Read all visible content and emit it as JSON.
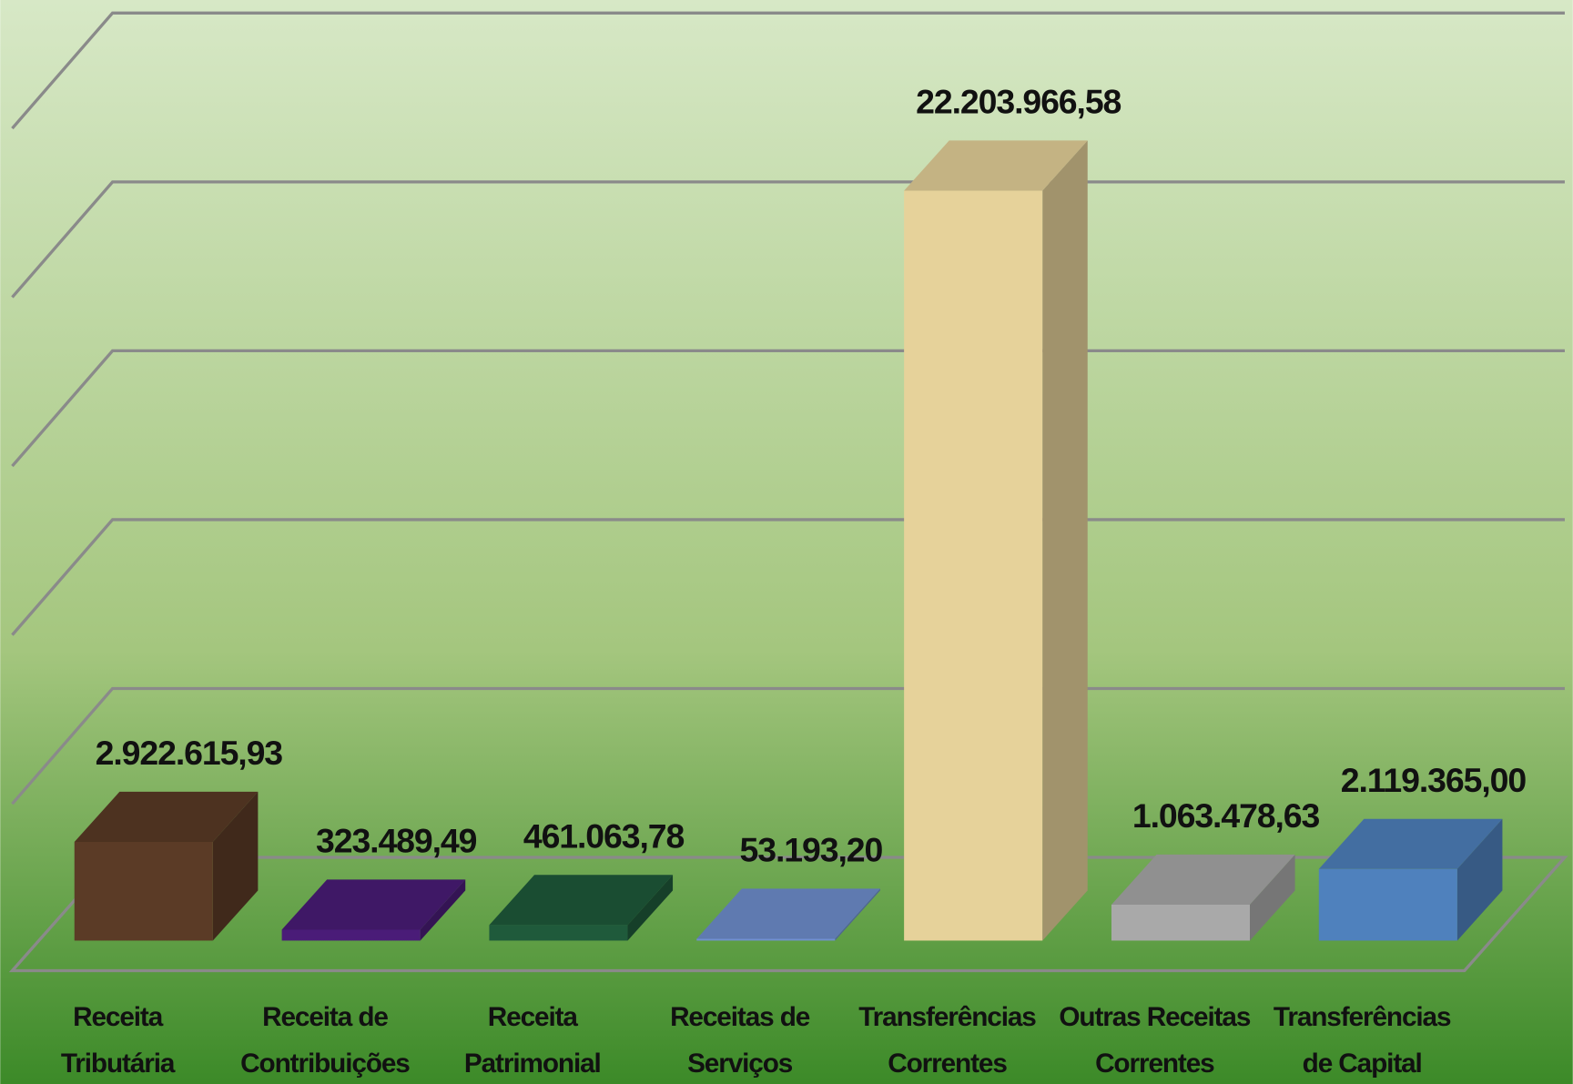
{
  "chart_data": {
    "type": "bar3d",
    "categories": [
      [
        "Receita",
        "Tributária"
      ],
      [
        "Receita de",
        "Contribuições"
      ],
      [
        "Receita",
        "Patrimonial"
      ],
      [
        "Receitas de",
        "Serviços"
      ],
      [
        "Transferências",
        "Correntes"
      ],
      [
        "Outras Receitas",
        "Correntes"
      ],
      [
        "Transferências",
        "de Capital"
      ]
    ],
    "values": [
      2922615.93,
      323489.49,
      461063.78,
      53193.2,
      22203966.58,
      1063478.63,
      2119365.0
    ],
    "value_labels": [
      "2.922.615,93",
      "323.489,49",
      "461.063,78",
      "53.193,20",
      "22.203.966,58",
      "1.063.478,63",
      "2.119.365,00"
    ],
    "colors": [
      "#5b3b26",
      "#4a1c78",
      "#1f5a3b",
      "#7090cf",
      "#e6d29a",
      "#a9a9a9",
      "#4f81bd"
    ],
    "ylim": [
      0,
      25000000
    ],
    "yticks": [
      0,
      5000000,
      10000000,
      15000000,
      20000000,
      25000000
    ],
    "grid": true
  }
}
